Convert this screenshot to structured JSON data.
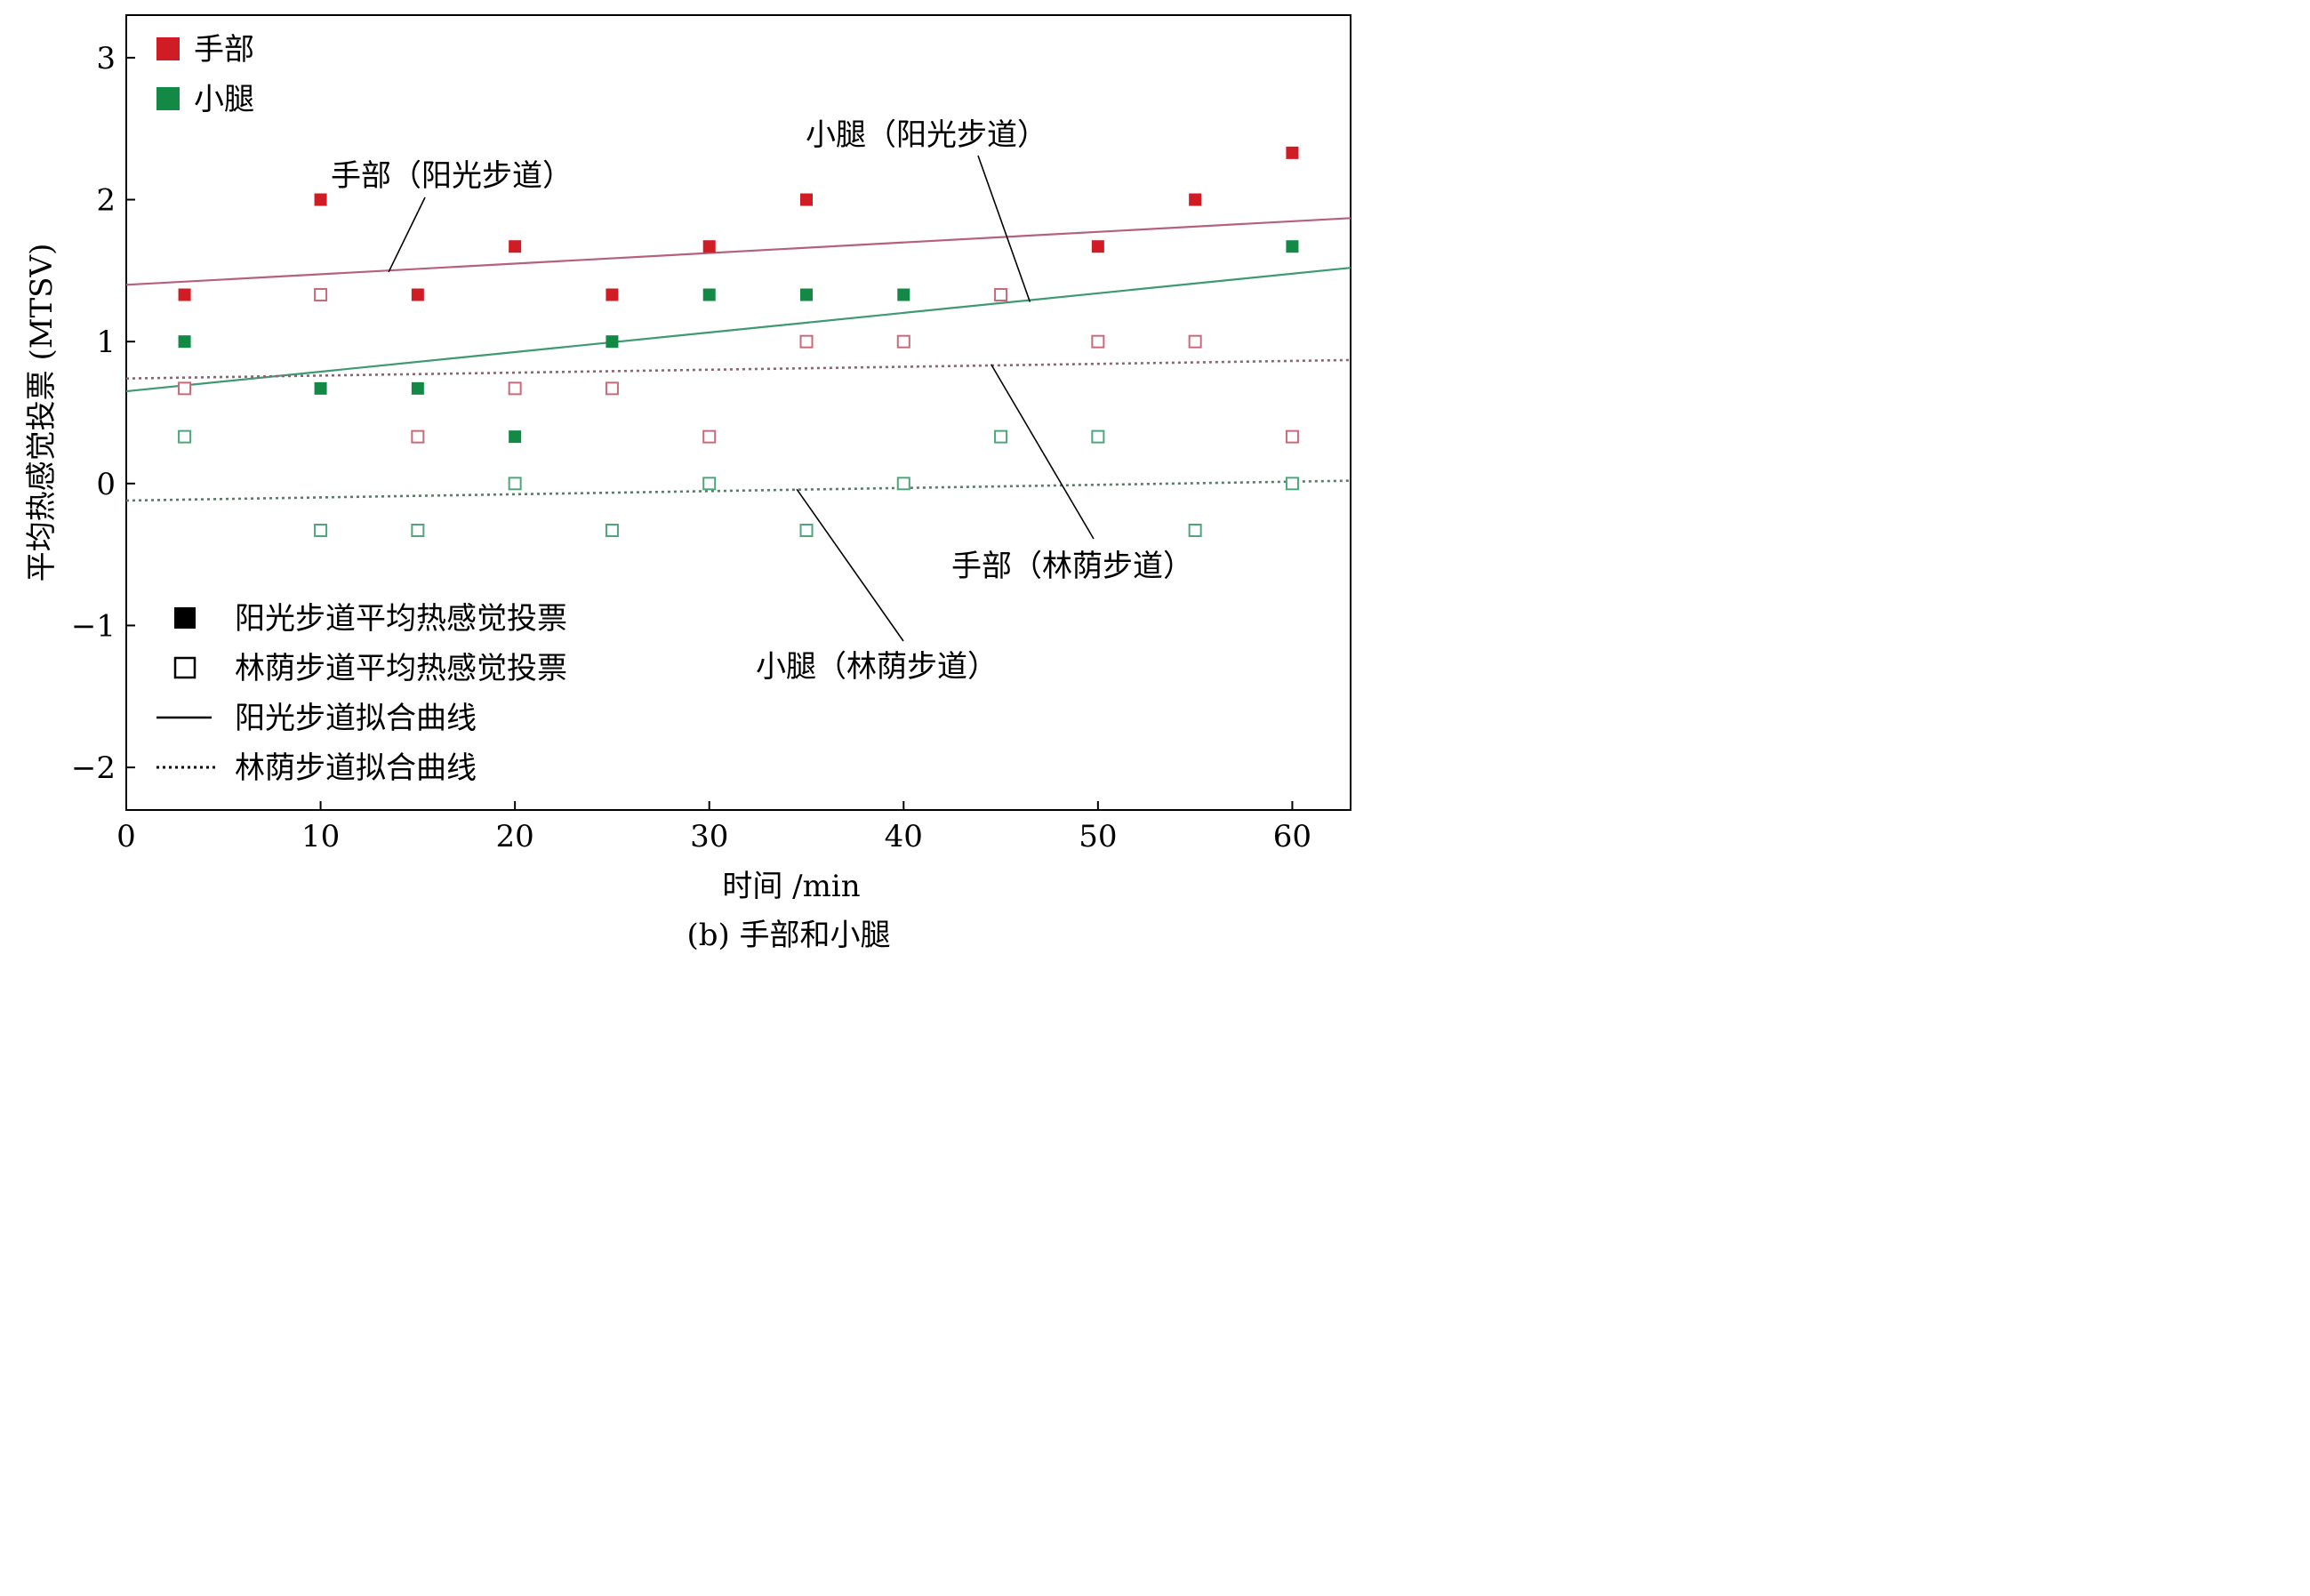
{
  "chart_data": {
    "type": "scatter",
    "caption": "(b) 手部和小腿",
    "xlabel": "时间 /min",
    "ylabel": "平均热感觉投票 (MTSV)",
    "xlim": [
      0,
      63
    ],
    "ylim": [
      -2.3,
      3.3
    ],
    "x_ticks": [
      0,
      10,
      20,
      30,
      40,
      50,
      60
    ],
    "y_ticks": [
      3,
      2,
      1,
      0,
      -1,
      -2
    ],
    "y_tick_labels": [
      "3",
      "2",
      "1",
      "0",
      "−1",
      "−2"
    ],
    "colors": {
      "hand": "#d01c24",
      "hand_light": "#c96a7a",
      "calf": "#128a46",
      "calf_light": "#4ea67a",
      "hand_line": "#b7607a",
      "calf_line": "#3d9a72",
      "shade_line_hand": "#8a6470",
      "shade_line_calf": "#5a7a68",
      "black": "#000000"
    },
    "legend_color": [
      {
        "label": "手部",
        "color": "#d01c24",
        "marker": "filled-square"
      },
      {
        "label": "小腿",
        "color": "#128a46",
        "marker": "filled-square"
      }
    ],
    "legend_style": [
      {
        "label": "阳光步道平均热感觉投票",
        "marker": "filled-square"
      },
      {
        "label": "林荫步道平均热感觉投票",
        "marker": "hollow-square"
      },
      {
        "label": "阳光步道拟合曲线",
        "marker": "solid-line"
      },
      {
        "label": "林荫步道拟合曲线",
        "marker": "dotted-line"
      }
    ],
    "series": [
      {
        "body": "hand",
        "path": "sun",
        "marker": "filled",
        "color": "#d01c24",
        "points": [
          [
            3,
            1.33
          ],
          [
            10,
            2.0
          ],
          [
            15,
            1.33
          ],
          [
            20,
            1.67
          ],
          [
            25,
            1.33
          ],
          [
            30,
            1.67
          ],
          [
            35,
            2.0
          ],
          [
            50,
            1.67
          ],
          [
            55,
            2.0
          ],
          [
            60,
            2.33
          ]
        ]
      },
      {
        "body": "calf",
        "path": "sun",
        "marker": "filled",
        "color": "#128a46",
        "points": [
          [
            3,
            1.0
          ],
          [
            10,
            0.67
          ],
          [
            15,
            0.67
          ],
          [
            20,
            0.33
          ],
          [
            25,
            1.0
          ],
          [
            30,
            1.33
          ],
          [
            35,
            1.33
          ],
          [
            40,
            1.33
          ],
          [
            60,
            1.67
          ]
        ]
      },
      {
        "body": "hand",
        "path": "shade",
        "marker": "hollow",
        "color": "#c96a7a",
        "points": [
          [
            3,
            0.67
          ],
          [
            10,
            1.33
          ],
          [
            15,
            0.33
          ],
          [
            20,
            0.67
          ],
          [
            25,
            0.67
          ],
          [
            30,
            0.33
          ],
          [
            35,
            1.0
          ],
          [
            40,
            1.0
          ],
          [
            45,
            1.33
          ],
          [
            50,
            1.0
          ],
          [
            55,
            1.0
          ],
          [
            60,
            0.33
          ]
        ]
      },
      {
        "body": "calf",
        "path": "shade",
        "marker": "hollow",
        "color": "#4ea67a",
        "points": [
          [
            3,
            0.33
          ],
          [
            10,
            -0.33
          ],
          [
            15,
            -0.33
          ],
          [
            20,
            0.0
          ],
          [
            25,
            -0.33
          ],
          [
            30,
            0.0
          ],
          [
            35,
            -0.33
          ],
          [
            40,
            0.0
          ],
          [
            45,
            0.33
          ],
          [
            50,
            0.33
          ],
          [
            55,
            -0.33
          ],
          [
            60,
            0.0
          ]
        ]
      }
    ],
    "fit_lines": [
      {
        "body": "hand",
        "path": "sun",
        "style": "solid",
        "color": "#b7607a",
        "from": [
          0,
          1.4
        ],
        "to": [
          63,
          1.87
        ]
      },
      {
        "body": "calf",
        "path": "sun",
        "style": "solid",
        "color": "#3d9a72",
        "from": [
          0,
          0.65
        ],
        "to": [
          63,
          1.52
        ]
      },
      {
        "body": "hand",
        "path": "shade",
        "style": "dotted",
        "color": "#8a6470",
        "from": [
          0,
          0.74
        ],
        "to": [
          63,
          0.87
        ]
      },
      {
        "body": "calf",
        "path": "shade",
        "style": "dotted",
        "color": "#5a7a68",
        "from": [
          0,
          -0.12
        ],
        "to": [
          63,
          0.02
        ]
      }
    ],
    "annotations": [
      {
        "text": "手部（阳光步道）",
        "target": [
          13.5,
          1.49
        ]
      },
      {
        "text": "小腿（阳光步道）",
        "target": [
          46.5,
          1.28
        ]
      },
      {
        "text": "手部（林荫步道）",
        "target": [
          44.5,
          0.84
        ]
      },
      {
        "text": "小腿（林荫步道）",
        "target": [
          34.5,
          -0.04
        ]
      }
    ]
  }
}
